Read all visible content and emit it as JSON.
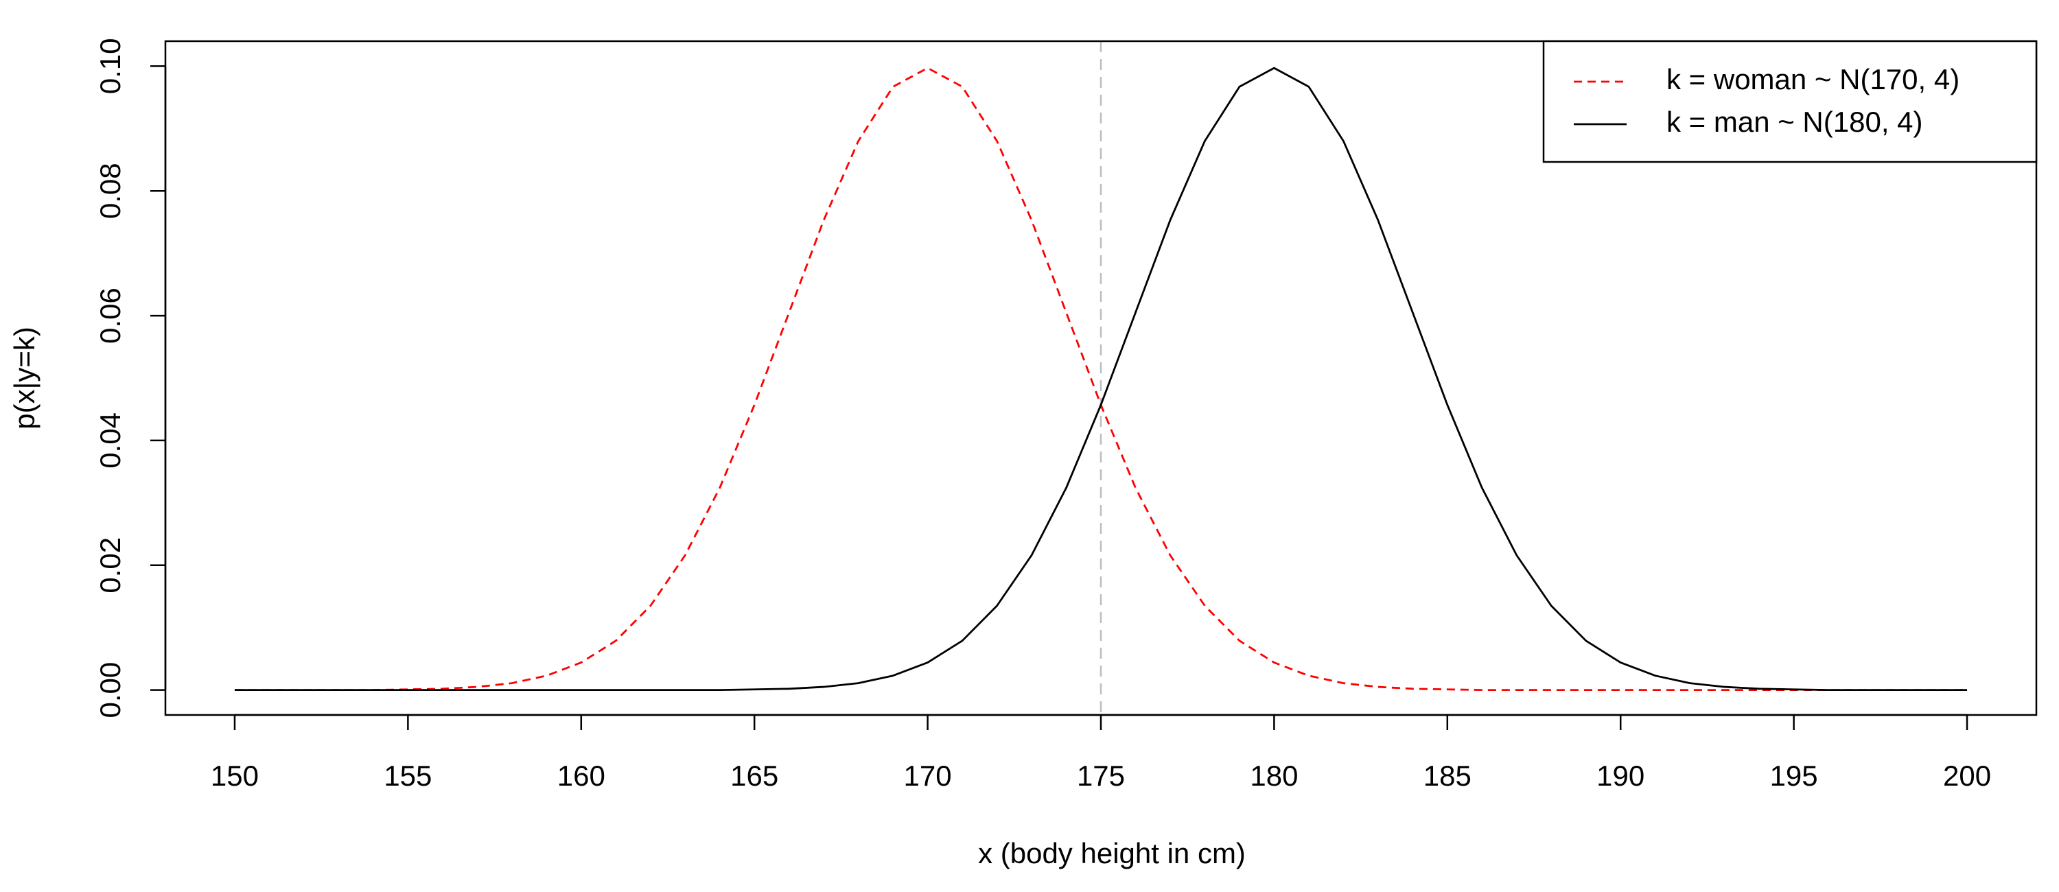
{
  "chart_data": {
    "type": "line",
    "x_label": "x (body height in cm)",
    "y_label": "p(x|y=k)",
    "x": [
      150,
      151,
      152,
      153,
      154,
      155,
      156,
      157,
      158,
      159,
      160,
      161,
      162,
      163,
      164,
      165,
      166,
      167,
      168,
      169,
      170,
      171,
      172,
      173,
      174,
      175,
      176,
      177,
      178,
      179,
      180,
      181,
      182,
      183,
      184,
      185,
      186,
      187,
      188,
      189,
      190,
      191,
      192,
      193,
      194,
      195,
      196,
      197,
      198,
      199,
      200
    ],
    "series": [
      {
        "name": "k = woman ~ N(170, 4)",
        "color": "#ff0000",
        "linestyle": "dashed",
        "values": [
          0,
          0,
          0,
          0,
          0,
          0.0001,
          0.0002,
          0.0005,
          0.0011,
          0.0023,
          0.0044,
          0.0079,
          0.0135,
          0.0216,
          0.0324,
          0.0457,
          0.0605,
          0.0753,
          0.088,
          0.0967,
          0.0997,
          0.0967,
          0.088,
          0.0753,
          0.0605,
          0.0457,
          0.0324,
          0.0216,
          0.0135,
          0.0079,
          0.0044,
          0.0023,
          0.0011,
          0.0005,
          0.0002,
          0.0001,
          0,
          0,
          0,
          0,
          0,
          0,
          0,
          0,
          0,
          0,
          0,
          0,
          0,
          0,
          0
        ]
      },
      {
        "name": "k = man ~ N(180, 4)",
        "color": "#000000",
        "linestyle": "solid",
        "values": [
          0,
          0,
          0,
          0,
          0,
          0,
          0,
          0,
          0,
          0,
          0,
          0,
          0,
          0,
          0,
          0.0001,
          0.0002,
          0.0005,
          0.0011,
          0.0023,
          0.0044,
          0.0079,
          0.0135,
          0.0216,
          0.0324,
          0.0457,
          0.0605,
          0.0753,
          0.088,
          0.0967,
          0.0997,
          0.0967,
          0.088,
          0.0753,
          0.0605,
          0.0457,
          0.0324,
          0.0216,
          0.0135,
          0.0079,
          0.0044,
          0.0023,
          0.0011,
          0.0005,
          0.0002,
          0.0001,
          0,
          0,
          0,
          0,
          0
        ]
      }
    ],
    "vline": 175,
    "vline_color": "#bebebe",
    "xlim": [
      148,
      202
    ],
    "xticks": [
      150,
      155,
      160,
      165,
      170,
      175,
      180,
      185,
      190,
      195,
      200
    ],
    "ylim": [
      -0.004,
      0.104
    ],
    "yticks": [
      {
        "value": 0,
        "label": "0.00"
      },
      {
        "value": 0.02,
        "label": "0.02"
      },
      {
        "value": 0.04,
        "label": "0.04"
      },
      {
        "value": 0.06,
        "label": "0.06"
      },
      {
        "value": 0.08,
        "label": "0.08"
      },
      {
        "value": 0.1,
        "label": "0.10"
      }
    ],
    "legend": "top-right"
  }
}
